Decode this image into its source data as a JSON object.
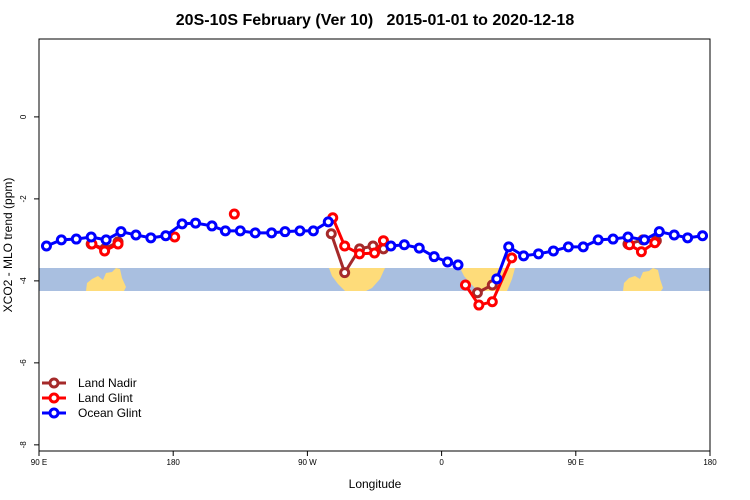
{
  "chart_data": {
    "type": "line",
    "title": "20S-10S February (Ver 10)   2015-01-01 to 2020-12-18",
    "x_label": "Longitude",
    "y_label": "XCO2 - MLO trend (ppm)",
    "xlim": [
      90,
      540
    ],
    "ylim": [
      -8.15,
      1.9
    ],
    "xticks": [
      {
        "value": 90,
        "label": "90 E"
      },
      180,
      {
        "value": 270,
        "label": "90 W"
      },
      {
        "value": 360,
        "label": "0"
      },
      {
        "value": 450,
        "label": "90 E"
      },
      {
        "value": 540,
        "label": "180"
      }
    ],
    "yticks": [
      0,
      -2,
      -4,
      -6,
      -8
    ],
    "legend": "bottom left",
    "series": [
      {
        "name": "Land Nadir",
        "color": "#a52a2a",
        "x": [
          125,
          134,
          143,
          200,
          286,
          295,
          305,
          314,
          321,
          350,
          384,
          394,
          440,
          485,
          495,
          504
        ],
        "values": [
          -3.1,
          -3.22,
          -3.05,
          null,
          -2.85,
          -3.8,
          -3.22,
          -3.15,
          -3.22,
          null,
          -4.29,
          -4.1,
          null,
          -3.1,
          -3.0,
          -3.02
        ]
      },
      {
        "name": "Land Glint",
        "color": "#ff0000",
        "x": [
          125.5,
          134,
          143,
          160,
          181,
          200,
          221,
          250,
          287,
          295,
          305,
          315,
          321,
          350,
          376,
          385,
          394,
          407,
          440,
          486,
          494,
          503
        ],
        "values": [
          -3.1,
          -3.27,
          -3.1,
          null,
          -2.93,
          null,
          -2.37,
          null,
          -2.46,
          -3.15,
          -3.34,
          -3.32,
          -3.02,
          null,
          -4.1,
          -4.59,
          -4.51,
          -3.44,
          null,
          -3.12,
          -3.29,
          -3.07
        ]
      },
      {
        "name": "Ocean Glint",
        "color": "#0000ff",
        "x": [
          95,
          105,
          115,
          125,
          135,
          145,
          155,
          165,
          175,
          186,
          195,
          206,
          215,
          225,
          235,
          246,
          255,
          265,
          274,
          284,
          305,
          326,
          335,
          345,
          355,
          364,
          371,
          384,
          397,
          405,
          415,
          425,
          435,
          445,
          455,
          465,
          475,
          485,
          496,
          506,
          516,
          525,
          535
        ],
        "values": [
          -3.15,
          -3.0,
          -2.98,
          -2.93,
          -3.0,
          -2.8,
          -2.88,
          -2.95,
          -2.9,
          -2.61,
          -2.59,
          -2.66,
          -2.78,
          -2.78,
          -2.83,
          -2.83,
          -2.8,
          -2.78,
          -2.78,
          -2.56,
          null,
          -3.15,
          -3.12,
          -3.2,
          -3.41,
          -3.54,
          -3.61,
          null,
          -3.95,
          -3.17,
          -3.39,
          -3.34,
          -3.27,
          -3.17,
          -3.17,
          -3.0,
          -2.98,
          -2.93,
          -3.0,
          -2.8,
          -2.88,
          -2.95,
          -2.9
        ]
      }
    ]
  }
}
